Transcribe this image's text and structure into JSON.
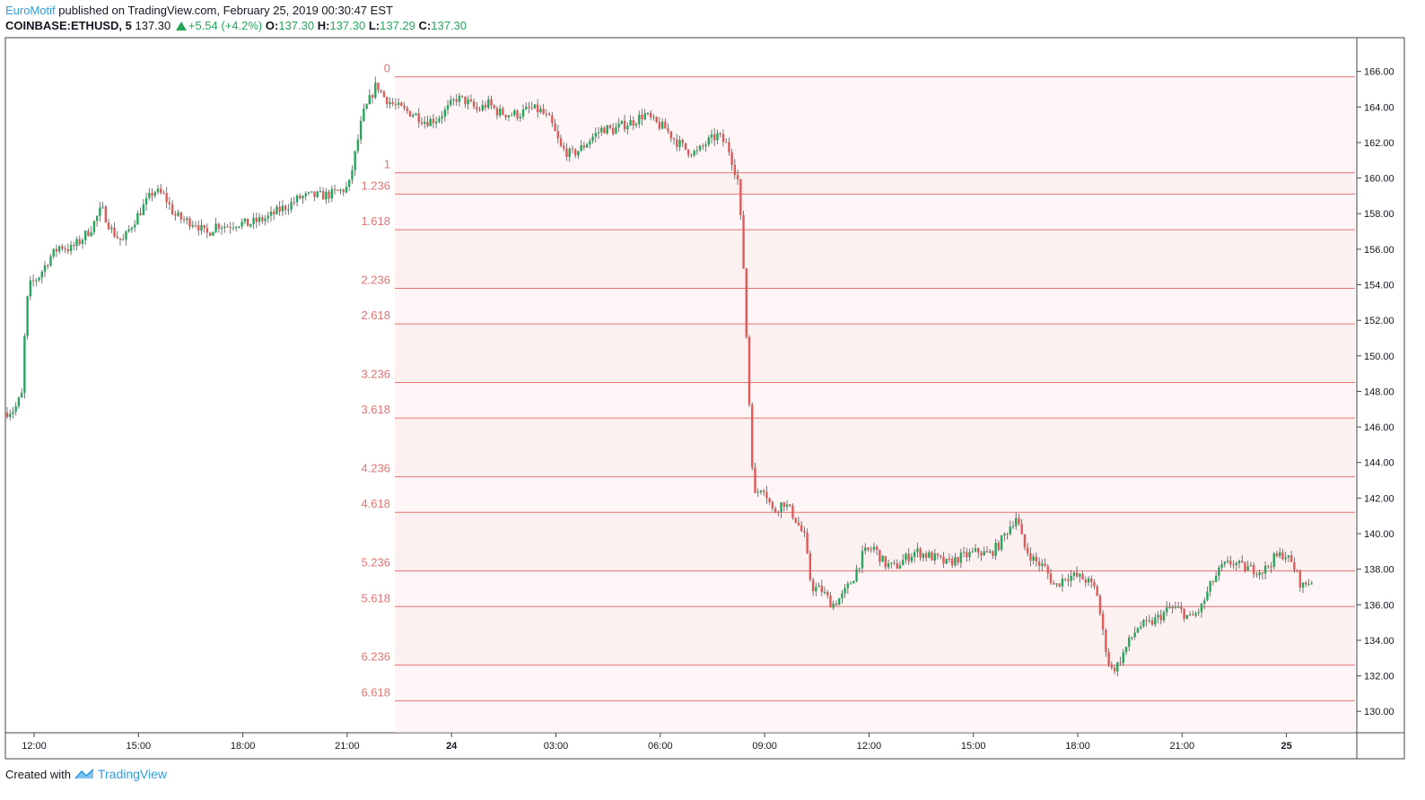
{
  "header": {
    "author": "EuroMotif",
    "published_text": "published on TradingView.com, February 25, 2019 00:30:47 EST",
    "symbol": "COINBASE:ETHUSD, 5",
    "last": "137.30",
    "change": "+5.54 (+4.2%)",
    "o_label": "O:",
    "o_value": "137.30",
    "h_label": "H:",
    "h_value": "137.30",
    "l_label": "L:",
    "l_value": "137.29",
    "c_label": "C:",
    "c_value": "137.30"
  },
  "footer": {
    "created_with": "Created with",
    "brand": "TradingView"
  },
  "colors": {
    "up": "#26a65b",
    "down": "#e05a5a",
    "fib": "#e57373",
    "fib_fill": "#fdecec"
  },
  "chart_data": {
    "type": "candlestick",
    "y_axis_ticks": [
      "130.00",
      "132.00",
      "134.00",
      "136.00",
      "138.00",
      "140.00",
      "142.00",
      "144.00",
      "146.00",
      "148.00",
      "150.00",
      "152.00",
      "154.00",
      "156.00",
      "158.00",
      "160.00",
      "162.00",
      "164.00",
      "166.00"
    ],
    "ylim": [
      128.8,
      167.9
    ],
    "x_ticks": [
      "12:00",
      "15:00",
      "18:00",
      "21:00",
      "24",
      "03:00",
      "06:00",
      "09:00",
      "12:00",
      "15:00",
      "18:00",
      "21:00",
      "25"
    ],
    "fib_levels": [
      {
        "label": "0",
        "price": 165.7
      },
      {
        "label": "1",
        "price": 160.3
      },
      {
        "label": "1.236",
        "price": 159.1
      },
      {
        "label": "1.618",
        "price": 157.1
      },
      {
        "label": "2.236",
        "price": 153.8
      },
      {
        "label": "2.618",
        "price": 151.8
      },
      {
        "label": "3.236",
        "price": 148.5
      },
      {
        "label": "3.618",
        "price": 146.5
      },
      {
        "label": "4.236",
        "price": 143.2
      },
      {
        "label": "4.618",
        "price": 141.2
      },
      {
        "label": "5.236",
        "price": 137.9
      },
      {
        "label": "5.618",
        "price": 135.9
      },
      {
        "label": "6.236",
        "price": 132.6
      },
      {
        "label": "6.618",
        "price": 130.6
      }
    ],
    "price_path": [
      [
        0,
        146.8
      ],
      [
        0.3,
        147.0
      ],
      [
        0.55,
        148.0
      ],
      [
        0.6,
        152.5
      ],
      [
        0.75,
        154.0
      ],
      [
        1.0,
        154.5
      ],
      [
        1.3,
        155.5
      ],
      [
        1.6,
        156.2
      ],
      [
        1.9,
        156.0
      ],
      [
        2.2,
        156.5
      ],
      [
        2.5,
        157.2
      ],
      [
        2.8,
        158.3
      ],
      [
        3.1,
        157.0
      ],
      [
        3.4,
        156.4
      ],
      [
        3.7,
        157.5
      ],
      [
        4.0,
        158.4
      ],
      [
        4.3,
        159.3
      ],
      [
        4.6,
        159.0
      ],
      [
        4.9,
        157.9
      ],
      [
        5.2,
        157.6
      ],
      [
        5.5,
        157.5
      ],
      [
        5.8,
        156.8
      ],
      [
        6.1,
        157.4
      ],
      [
        6.4,
        157.3
      ],
      [
        6.7,
        157.5
      ],
      [
        7.0,
        157.4
      ],
      [
        7.3,
        157.6
      ],
      [
        7.6,
        157.8
      ],
      [
        7.9,
        158.2
      ],
      [
        8.2,
        158.5
      ],
      [
        8.5,
        158.9
      ],
      [
        8.8,
        159.0
      ],
      [
        9.1,
        159.0
      ],
      [
        9.4,
        159.1
      ],
      [
        9.7,
        159.3
      ],
      [
        9.9,
        159.5
      ],
      [
        10.1,
        161.5
      ],
      [
        10.3,
        163.5
      ],
      [
        10.5,
        164.4
      ],
      [
        10.7,
        165.3
      ],
      [
        10.9,
        164.6
      ],
      [
        11.2,
        164.1
      ],
      [
        11.5,
        163.8
      ],
      [
        11.8,
        163.6
      ],
      [
        12.1,
        163.2
      ],
      [
        12.4,
        163.3
      ],
      [
        12.7,
        163.8
      ],
      [
        13.0,
        164.5
      ],
      [
        13.3,
        164.3
      ],
      [
        13.6,
        163.8
      ],
      [
        13.9,
        164.2
      ],
      [
        14.2,
        163.7
      ],
      [
        14.5,
        163.6
      ],
      [
        14.8,
        163.6
      ],
      [
        15.1,
        163.9
      ],
      [
        15.4,
        163.8
      ],
      [
        15.7,
        163.2
      ],
      [
        16.0,
        161.7
      ],
      [
        16.3,
        161.3
      ],
      [
        16.6,
        161.7
      ],
      [
        16.9,
        162.3
      ],
      [
        17.2,
        162.8
      ],
      [
        17.5,
        162.7
      ],
      [
        17.8,
        163.0
      ],
      [
        18.1,
        163.2
      ],
      [
        18.4,
        163.6
      ],
      [
        18.7,
        163.1
      ],
      [
        19.0,
        162.8
      ],
      [
        19.3,
        162.1
      ],
      [
        19.6,
        161.6
      ],
      [
        19.9,
        161.4
      ],
      [
        20.2,
        162.0
      ],
      [
        20.5,
        162.4
      ],
      [
        20.8,
        161.8
      ],
      [
        21.1,
        159.8
      ],
      [
        21.25,
        155.0
      ],
      [
        21.4,
        148.0
      ],
      [
        21.55,
        142.0
      ],
      [
        21.8,
        142.8
      ],
      [
        22.1,
        141.2
      ],
      [
        22.4,
        141.8
      ],
      [
        22.7,
        141.0
      ],
      [
        23.0,
        139.8
      ],
      [
        23.2,
        137.0
      ],
      [
        23.5,
        136.8
      ],
      [
        23.8,
        136.0
      ],
      [
        24.1,
        136.5
      ],
      [
        24.4,
        137.5
      ],
      [
        24.7,
        138.9
      ],
      [
        25.0,
        139.2
      ],
      [
        25.3,
        138.3
      ],
      [
        25.6,
        138.1
      ],
      [
        25.9,
        138.6
      ],
      [
        26.2,
        139.0
      ],
      [
        26.5,
        138.8
      ],
      [
        26.8,
        138.6
      ],
      [
        27.1,
        138.3
      ],
      [
        27.4,
        138.6
      ],
      [
        27.7,
        138.8
      ],
      [
        28.0,
        139.0
      ],
      [
        28.3,
        138.8
      ],
      [
        28.6,
        139.4
      ],
      [
        28.9,
        140.4
      ],
      [
        29.1,
        141.0
      ],
      [
        29.3,
        139.3
      ],
      [
        29.6,
        138.5
      ],
      [
        29.9,
        138.1
      ],
      [
        30.2,
        137.0
      ],
      [
        30.5,
        137.6
      ],
      [
        30.8,
        137.6
      ],
      [
        31.1,
        137.4
      ],
      [
        31.4,
        136.8
      ],
      [
        31.6,
        134.2
      ],
      [
        31.8,
        132.3
      ],
      [
        32.0,
        132.6
      ],
      [
        32.3,
        133.8
      ],
      [
        32.6,
        134.8
      ],
      [
        32.9,
        134.9
      ],
      [
        33.2,
        135.3
      ],
      [
        33.5,
        135.8
      ],
      [
        33.8,
        135.7
      ],
      [
        34.1,
        135.2
      ],
      [
        34.4,
        135.8
      ],
      [
        34.7,
        137.2
      ],
      [
        35.0,
        138.1
      ],
      [
        35.3,
        138.4
      ],
      [
        35.6,
        138.1
      ],
      [
        35.9,
        138.0
      ],
      [
        36.2,
        137.9
      ],
      [
        36.5,
        138.6
      ],
      [
        36.8,
        138.9
      ],
      [
        37.1,
        138.0
      ],
      [
        37.3,
        137.0
      ],
      [
        37.5,
        137.3
      ]
    ]
  }
}
